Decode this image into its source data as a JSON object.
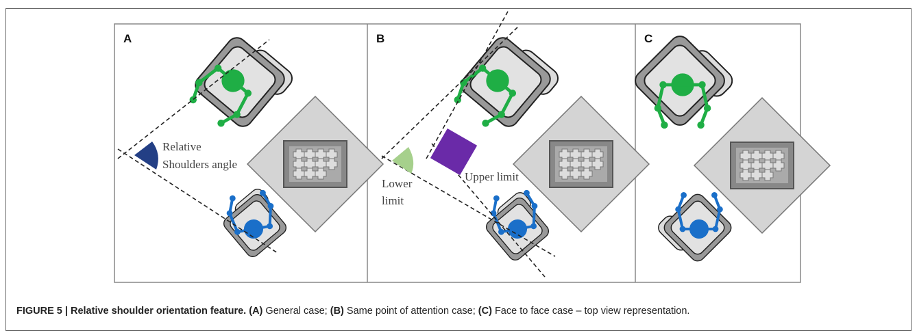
{
  "figure": {
    "panels": [
      {
        "label": "A",
        "annotations": [
          "Relative",
          "Shoulders angle"
        ]
      },
      {
        "label": "B",
        "annotations": [
          "Lower",
          "limit",
          "Upper limit"
        ]
      },
      {
        "label": "C"
      }
    ],
    "caption": {
      "title": "FIGURE 5 | Relative shoulder orientation feature.",
      "parts": [
        {
          "label": "(A)",
          "text": "General case;"
        },
        {
          "label": "(B)",
          "text": "Same point of attention case;"
        },
        {
          "label": "(C)",
          "text": "Face to face case – top view representation."
        }
      ]
    }
  }
}
